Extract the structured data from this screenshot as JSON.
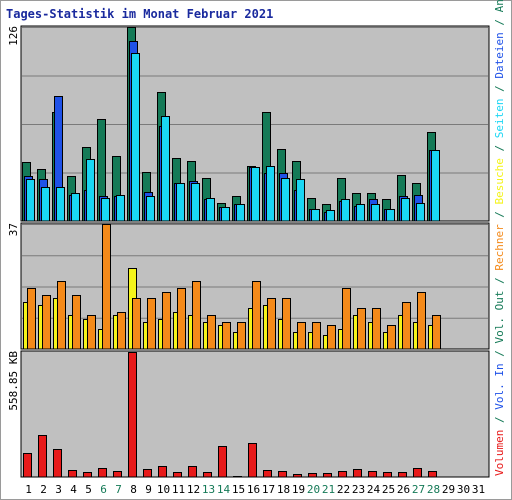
{
  "chart_data": [
    {
      "type": "bar",
      "title": "Tages-Statistik im Monat Februar 2021",
      "panel": "top",
      "scale_label": "126",
      "ylim": [
        0,
        126
      ],
      "grid": true,
      "categories": [
        "1",
        "2",
        "3",
        "4",
        "5",
        "6",
        "7",
        "8",
        "9",
        "10",
        "11",
        "12",
        "13",
        "14",
        "15",
        "16",
        "17",
        "18",
        "19",
        "20",
        "21",
        "22",
        "23",
        "24",
        "25",
        "26",
        "27",
        "28",
        "29",
        "30",
        "31"
      ],
      "series": [
        {
          "name": "Anfragen",
          "color": "#157a57",
          "values": [
            38,
            34,
            71,
            29,
            48,
            66,
            42,
            126,
            32,
            84,
            41,
            39,
            28,
            12,
            16,
            36,
            71,
            47,
            39,
            15,
            11,
            28,
            18,
            18,
            14,
            30,
            25,
            58,
            0,
            0,
            0
          ]
        },
        {
          "name": "Dateien",
          "color": "#1f52e8",
          "values": [
            29,
            27,
            81,
            17,
            20,
            16,
            16,
            117,
            19,
            62,
            25,
            26,
            14,
            9,
            11,
            35,
            31,
            31,
            20,
            8,
            6,
            13,
            10,
            14,
            8,
            16,
            17,
            46,
            0,
            0,
            0
          ]
        },
        {
          "name": "Seiten",
          "color": "#1ad6f4",
          "values": [
            27,
            22,
            22,
            18,
            40,
            15,
            17,
            109,
            16,
            68,
            25,
            25,
            15,
            9,
            11,
            35,
            36,
            28,
            27,
            8,
            7,
            14,
            11,
            11,
            8,
            15,
            12,
            46,
            0,
            0,
            0
          ]
        }
      ]
    },
    {
      "type": "bar",
      "panel": "middle",
      "scale_label": "37",
      "ylim": [
        0,
        37
      ],
      "grid": true,
      "categories": [
        "1",
        "2",
        "3",
        "4",
        "5",
        "6",
        "7",
        "8",
        "9",
        "10",
        "11",
        "12",
        "13",
        "14",
        "15",
        "16",
        "17",
        "18",
        "19",
        "20",
        "21",
        "22",
        "23",
        "24",
        "25",
        "26",
        "27",
        "28",
        "29",
        "30",
        "31"
      ],
      "series": [
        {
          "name": "Besuche",
          "color": "#f4f41a",
          "values": [
            14,
            13,
            15,
            10,
            9,
            6,
            10,
            24,
            8,
            9,
            11,
            10,
            8,
            7,
            5,
            12,
            13,
            9,
            5,
            5,
            4,
            6,
            10,
            8,
            5,
            10,
            8,
            7,
            0,
            0,
            0
          ]
        },
        {
          "name": "Rechner",
          "color": "#f48a1a",
          "values": [
            18,
            16,
            20,
            16,
            10,
            37,
            11,
            15,
            15,
            17,
            18,
            20,
            10,
            8,
            8,
            20,
            15,
            15,
            8,
            8,
            7,
            18,
            12,
            12,
            7,
            14,
            17,
            10,
            0,
            0,
            0
          ]
        }
      ]
    },
    {
      "type": "bar",
      "panel": "bottom",
      "scale_label": "558.85 KB",
      "ylim": [
        0,
        558.85
      ],
      "grid": false,
      "categories": [
        "1",
        "2",
        "3",
        "4",
        "5",
        "6",
        "7",
        "8",
        "9",
        "10",
        "11",
        "12",
        "13",
        "14",
        "15",
        "16",
        "17",
        "18",
        "19",
        "20",
        "21",
        "22",
        "23",
        "24",
        "25",
        "26",
        "27",
        "28",
        "29",
        "30",
        "31"
      ],
      "series": [
        {
          "name": "Volumen",
          "color": "#e81a1a",
          "values": [
            108,
            187,
            127,
            33,
            22,
            40,
            29,
            558.85,
            37,
            51,
            21,
            51,
            21,
            137,
            4,
            151,
            33,
            29,
            13,
            18,
            17,
            28,
            38,
            29,
            22,
            22,
            40,
            27,
            0,
            0,
            0
          ]
        }
      ]
    }
  ],
  "right_legend": [
    {
      "text": "Volumen",
      "color": "#e81a1a"
    },
    {
      "text": " / ",
      "color": "#157a57"
    },
    {
      "text": "Vol. In",
      "color": "#1f52e8"
    },
    {
      "text": " / ",
      "color": "#157a57"
    },
    {
      "text": "Vol. Out",
      "color": "#157a57"
    },
    {
      "text": " / ",
      "color": "#157a57"
    },
    {
      "text": "Rechner",
      "color": "#f48a1a"
    },
    {
      "text": " / ",
      "color": "#157a57"
    },
    {
      "text": "Besuche",
      "color": "#f4f41a"
    },
    {
      "text": " / ",
      "color": "#157a57"
    },
    {
      "text": "Seiten",
      "color": "#1ad6f4"
    },
    {
      "text": " / ",
      "color": "#157a57"
    },
    {
      "text": "Dateien",
      "color": "#1f52e8"
    },
    {
      "text": " / ",
      "color": "#157a57"
    },
    {
      "text": "Anfragen",
      "color": "#157a57"
    }
  ],
  "weekend_days": [
    "6",
    "7",
    "13",
    "14",
    "20",
    "21",
    "27",
    "28"
  ],
  "colors": {
    "title": "#1a2a9e",
    "panel_bg": "#c0c0c0",
    "weekday_label": "#000000",
    "weekend_label": "#157a57"
  }
}
